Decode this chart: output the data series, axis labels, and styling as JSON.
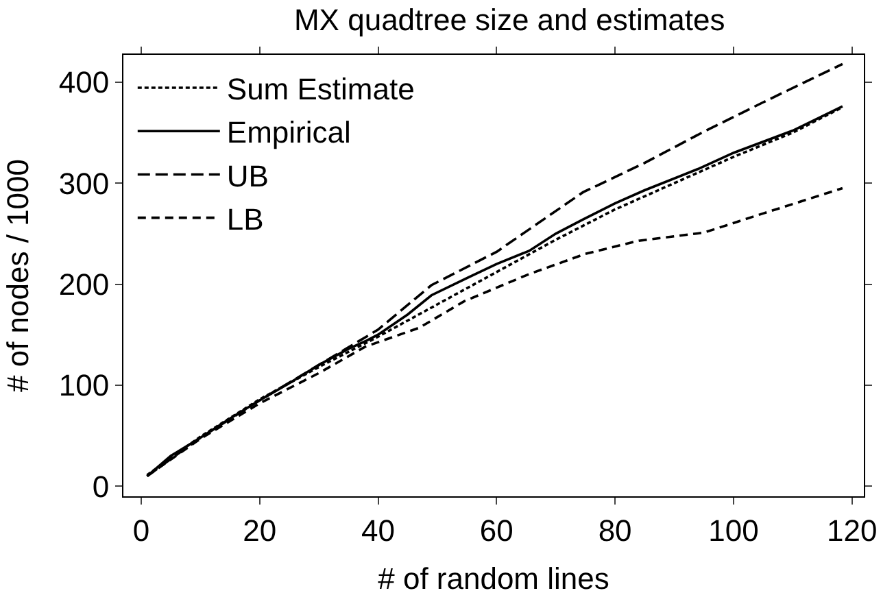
{
  "chart_data": {
    "type": "line",
    "title": "MX quadtree size and estimates",
    "xlabel": "# of random lines",
    "ylabel": "# of nodes / 1000",
    "xlim": [
      -3,
      122
    ],
    "xticks": [
      0,
      20,
      40,
      60,
      80,
      100,
      120
    ],
    "ylim": [
      -10,
      427
    ],
    "yticks": [
      0,
      100,
      200,
      300,
      400
    ],
    "legend": "top left",
    "series": [
      {
        "name": "Sum Estimate",
        "color": "#000000",
        "line_style": "dotted",
        "x": [
          1,
          10,
          20,
          30,
          40,
          50,
          60,
          70,
          80,
          90,
          100,
          110,
          118
        ],
        "values": [
          11,
          49,
          86,
          118,
          148,
          180,
          212,
          244,
          274,
          300,
          326,
          350,
          374
        ]
      },
      {
        "name": "Empirical",
        "color": "#000000",
        "line_style": "solid",
        "x": [
          1,
          5,
          10,
          15,
          20,
          25,
          30,
          35,
          38,
          40,
          45,
          49,
          55,
          60,
          65.5,
          70,
          74.6,
          80,
          85,
          94,
          100,
          110,
          118.4
        ],
        "values": [
          10,
          30,
          48,
          67,
          85,
          102,
          120,
          136,
          144,
          150,
          170,
          189,
          206,
          220,
          233,
          250,
          264,
          280,
          293,
          314,
          330,
          352,
          376
        ]
      },
      {
        "name": "UB",
        "color": "#000000",
        "line_style": "dash",
        "x": [
          1,
          10,
          20,
          30,
          40,
          49,
          60,
          74.6,
          85,
          95,
          105,
          118.4
        ],
        "values": [
          10,
          48,
          85,
          120,
          155,
          199,
          232,
          291,
          320,
          351,
          380,
          418
        ]
      },
      {
        "name": "LB",
        "color": "#000000",
        "line_style": "dashed",
        "x": [
          1,
          10,
          20,
          30,
          37.8,
          47,
          54.5,
          65.5,
          75,
          84,
          95,
          105,
          118.4
        ],
        "values": [
          10,
          47,
          82,
          112,
          138,
          157,
          183,
          210,
          230,
          243,
          251,
          270,
          295
        ]
      }
    ]
  }
}
